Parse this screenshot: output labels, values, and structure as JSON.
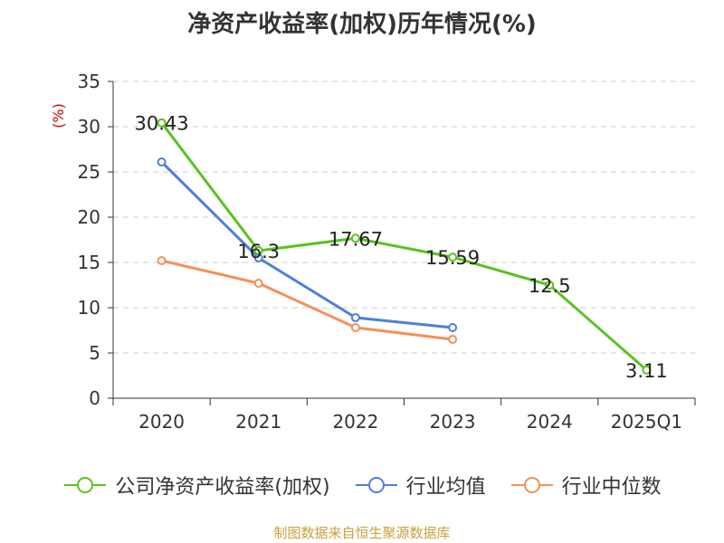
{
  "chart_data": {
    "type": "line",
    "title": "净资产收益率(加权)历年情况(%)",
    "ylabel": "(%)",
    "xlabel": "",
    "categories": [
      "2020",
      "2021",
      "2022",
      "2023",
      "2024",
      "2025Q1"
    ],
    "ylim": [
      0,
      35
    ],
    "yticks": [
      0,
      5,
      10,
      15,
      20,
      25,
      30,
      35
    ],
    "grid": true,
    "legend_position": "bottom",
    "series": [
      {
        "name": "公司净资产收益率(加权)",
        "color": "#5ac31e",
        "values": [
          30.43,
          16.3,
          17.67,
          15.59,
          12.5,
          3.11
        ],
        "labels": [
          "30.43",
          "16.3",
          "17.67",
          "15.59",
          "12.5",
          "3.11"
        ]
      },
      {
        "name": "行业均值",
        "color": "#4f7fdb",
        "values": [
          26.1,
          15.5,
          8.9,
          7.8,
          null,
          null
        ]
      },
      {
        "name": "行业中位数",
        "color": "#f5905a",
        "values": [
          15.2,
          12.7,
          7.8,
          6.5,
          null,
          null
        ]
      }
    ]
  },
  "source": {
    "text": "制图数据来自恒生聚源数据库",
    "color": "#c8a03c"
  },
  "ylabel_color": "#cc0000"
}
